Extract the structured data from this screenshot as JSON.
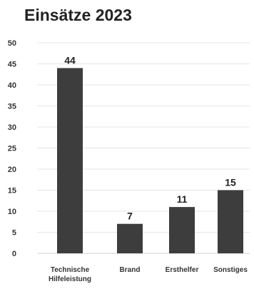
{
  "chart_data": {
    "type": "bar",
    "title": "Einsätze 2023",
    "categories": [
      [
        "Technische",
        "Hilfeleistung"
      ],
      [
        "Brand"
      ],
      [
        "Ersthelfer"
      ],
      [
        "Sonstiges"
      ]
    ],
    "values": [
      44,
      7,
      11,
      15
    ],
    "ylim": [
      0,
      50
    ],
    "yticks": [
      0,
      5,
      10,
      15,
      20,
      25,
      30,
      35,
      40,
      45,
      50
    ],
    "xlabel": "",
    "ylabel": "",
    "grid": true,
    "legend": "none",
    "colors": {
      "bar": "#3d3d3d",
      "grid": "#e4e4e4",
      "text": "#222222"
    }
  }
}
